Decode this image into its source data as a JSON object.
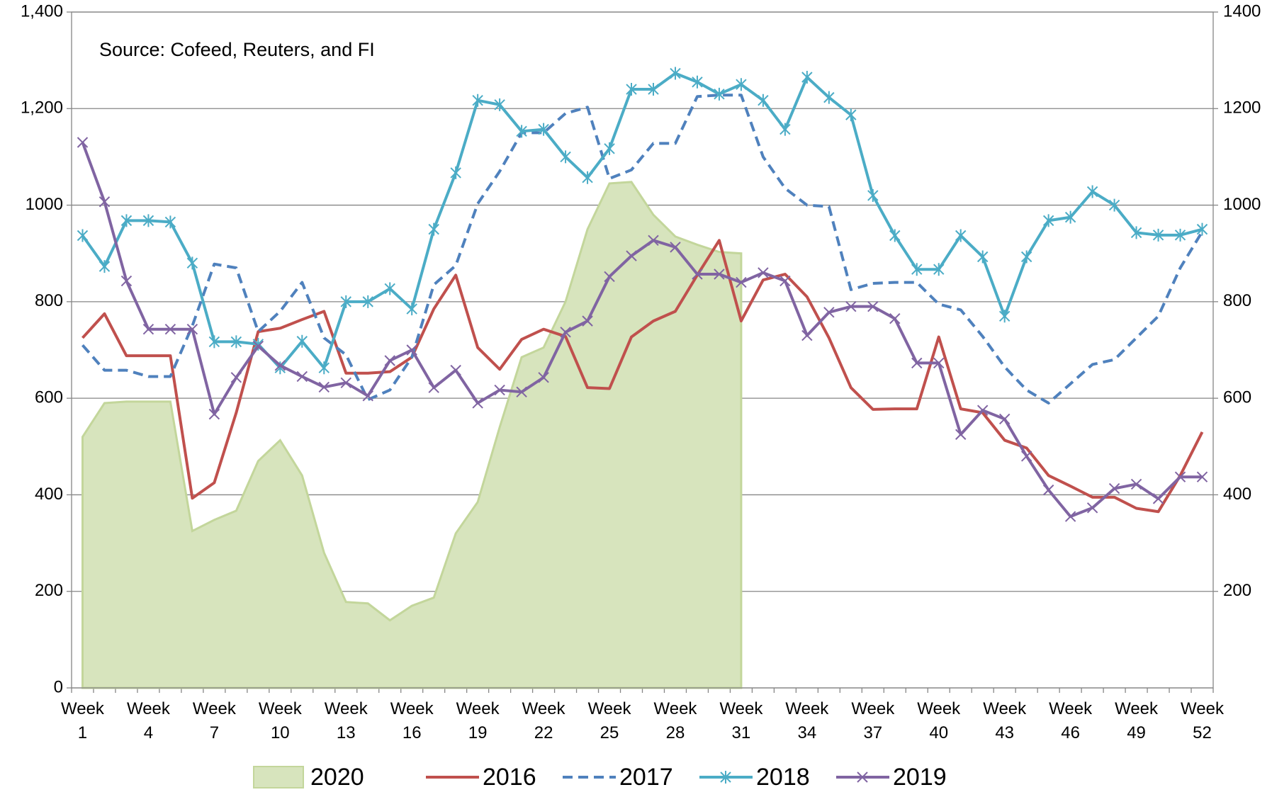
{
  "chart_data": {
    "type": "line",
    "annotation": "Source: Cofeed, Reuters, and FI",
    "categories": [
      "Week 1",
      null,
      null,
      "Week 4",
      null,
      null,
      "Week 7",
      null,
      null,
      "Week 10",
      null,
      null,
      "Week 13",
      null,
      null,
      "Week 16",
      null,
      null,
      "Week 19",
      null,
      null,
      "Week 22",
      null,
      null,
      "Week 25",
      null,
      null,
      "Week 28",
      null,
      null,
      "Week 31",
      null,
      null,
      "Week 34",
      null,
      null,
      "Week 37",
      null,
      null,
      "Week 40",
      null,
      null,
      "Week 43",
      null,
      null,
      "Week 46",
      null,
      null,
      "Week 49",
      null,
      null,
      "Week 52"
    ],
    "ylim": [
      0,
      1400
    ],
    "yticks": [
      0,
      200,
      400,
      600,
      800,
      1000,
      {
        "value": 1200,
        "label": "1,200"
      },
      {
        "value": 1400,
        "label": "1,400"
      }
    ],
    "y2lim": [
      0,
      1400
    ],
    "y2ticks": [
      200,
      400,
      600,
      800,
      1000,
      1200,
      1400
    ],
    "grid": true,
    "legend": "bottom",
    "series": [
      {
        "name": "2020",
        "type": "area",
        "color": "#d7e4bd",
        "stroke": "#c3d69b",
        "values": [
          520,
          590,
          593,
          593,
          593,
          325,
          348,
          367,
          470,
          513,
          440,
          280,
          178,
          175,
          140,
          170,
          187,
          320,
          385,
          540,
          685,
          705,
          800,
          950,
          1045,
          1048,
          980,
          935,
          918,
          903,
          900,
          null,
          null,
          null,
          null,
          null,
          null,
          null,
          null,
          null,
          null,
          null,
          null,
          null,
          null,
          null,
          null,
          null,
          null,
          null,
          null,
          null
        ]
      },
      {
        "name": "2016",
        "color": "#c0504d",
        "values": [
          725,
          775,
          688,
          688,
          688,
          393,
          425,
          570,
          738,
          745,
          763,
          780,
          652,
          652,
          655,
          685,
          785,
          855,
          705,
          660,
          722,
          743,
          728,
          622,
          620,
          727,
          760,
          780,
          855,
          927,
          760,
          845,
          857,
          810,
          725,
          622,
          577,
          578,
          578,
          727,
          578,
          570,
          513,
          497,
          440,
          418,
          395,
          395,
          372,
          365,
          440,
          530
        ]
      },
      {
        "name": "2017",
        "color": "#4f81bd",
        "dash": true,
        "values": [
          710,
          658,
          658,
          645,
          645,
          750,
          878,
          870,
          738,
          780,
          840,
          725,
          690,
          597,
          617,
          685,
          835,
          875,
          1003,
          1070,
          1150,
          1150,
          1190,
          1203,
          1055,
          1073,
          1128,
          1128,
          1225,
          1228,
          1228,
          1100,
          1035,
          1000,
          997,
          825,
          838,
          840,
          840,
          795,
          783,
          728,
          665,
          617,
          590,
          630,
          670,
          680,
          725,
          770,
          870,
          945
        ]
      },
      {
        "name": "2018",
        "color": "#4bacc6",
        "marker": "asterisk",
        "values": [
          937,
          873,
          968,
          968,
          965,
          880,
          717,
          717,
          712,
          663,
          718,
          663,
          800,
          800,
          827,
          785,
          950,
          1067,
          1217,
          1208,
          1153,
          1157,
          1100,
          1057,
          1117,
          1240,
          1240,
          1273,
          1255,
          1230,
          1250,
          1217,
          1157,
          1265,
          1223,
          1187,
          1020,
          937,
          867,
          867,
          937,
          893,
          770,
          893,
          968,
          975,
          1028,
          1000,
          943,
          938,
          938,
          950
        ]
      },
      {
        "name": "2019",
        "color": "#8064a2",
        "marker": "x",
        "values": [
          1130,
          1007,
          843,
          743,
          743,
          743,
          567,
          643,
          708,
          668,
          645,
          623,
          632,
          605,
          678,
          700,
          622,
          658,
          590,
          617,
          613,
          643,
          737,
          760,
          852,
          895,
          927,
          913,
          857,
          857,
          840,
          860,
          843,
          730,
          778,
          790,
          790,
          765,
          673,
          673,
          525,
          575,
          557,
          480,
          410,
          355,
          373,
          413,
          422,
          392,
          437,
          437
        ]
      }
    ]
  }
}
